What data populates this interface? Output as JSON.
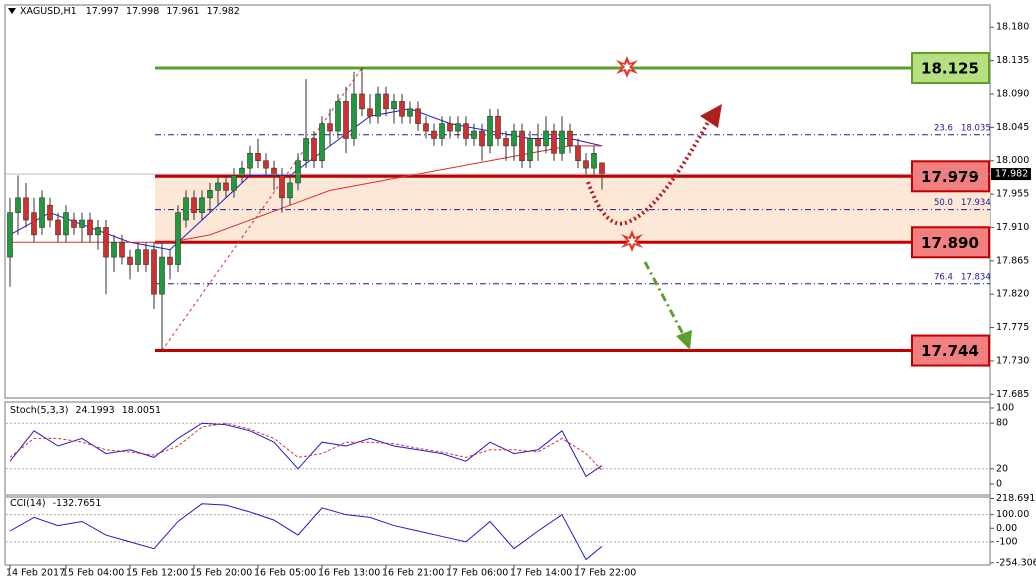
{
  "chart_data": [
    {
      "type": "candlestick",
      "symbol": "XAGUSD,H1",
      "up_color": "#1f9a3c",
      "down_color": "#d2302c",
      "xlim": [
        -0.5,
        122.5
      ],
      "xticks": [
        {
          "value": 0,
          "label": "14 Feb 2017"
        },
        {
          "value": 7,
          "label": "15 Feb 04:00"
        },
        {
          "value": 15,
          "label": "15 Feb 12:00"
        },
        {
          "value": 23,
          "label": "15 Feb 20:00"
        },
        {
          "value": 31,
          "label": "16 Feb 05:00"
        },
        {
          "value": 39,
          "label": "16 Feb 13:00"
        },
        {
          "value": 47,
          "label": "16 Feb 21:00"
        },
        {
          "value": 55,
          "label": "17 Feb 06:00"
        },
        {
          "value": 63,
          "label": "17 Feb 14:00"
        },
        {
          "value": 71,
          "label": "17 Feb 22:00"
        }
      ],
      "ylim": [
        17.68,
        18.21
      ],
      "yticks": [
        {
          "value": 18.18,
          "label": "18.180"
        },
        18.135,
        {
          "value": 18.09,
          "label": "18.090"
        },
        18.045,
        {
          "value": 18,
          "label": "18.000"
        },
        17.955,
        {
          "value": 17.91,
          "label": "17.910"
        },
        17.865,
        {
          "value": 17.82,
          "label": "17.820"
        },
        17.775,
        {
          "value": 17.73,
          "label": "17.730"
        },
        17.685
      ],
      "candles": [
        [
          17.87,
          17.95,
          17.83,
          17.93
        ],
        [
          17.93,
          17.98,
          17.9,
          17.95
        ],
        [
          17.95,
          17.97,
          17.91,
          17.92
        ],
        [
          17.93,
          17.95,
          17.89,
          17.9
        ],
        [
          17.91,
          17.96,
          17.9,
          17.95
        ],
        [
          17.94,
          17.95,
          17.91,
          17.92
        ],
        [
          17.92,
          17.93,
          17.89,
          17.9
        ],
        [
          17.9,
          17.94,
          17.89,
          17.93
        ],
        [
          17.92,
          17.93,
          17.9,
          17.91
        ],
        [
          17.91,
          17.93,
          17.89,
          17.92
        ],
        [
          17.92,
          17.93,
          17.89,
          17.9
        ],
        [
          17.9,
          17.92,
          17.88,
          17.91
        ],
        [
          17.91,
          17.92,
          17.82,
          17.87
        ],
        [
          17.87,
          17.9,
          17.85,
          17.89
        ],
        [
          17.89,
          17.9,
          17.86,
          17.87
        ],
        [
          17.87,
          17.88,
          17.84,
          17.86
        ],
        [
          17.86,
          17.89,
          17.85,
          17.88
        ],
        [
          17.88,
          17.89,
          17.85,
          17.86
        ],
        [
          17.88,
          17.89,
          17.8,
          17.82
        ],
        [
          17.82,
          17.89,
          17.744,
          17.87
        ],
        [
          17.87,
          17.88,
          17.84,
          17.86
        ],
        [
          17.86,
          17.94,
          17.85,
          17.93
        ],
        [
          17.92,
          17.96,
          17.91,
          17.95
        ],
        [
          17.95,
          17.96,
          17.92,
          17.93
        ],
        [
          17.93,
          17.96,
          17.92,
          17.95
        ],
        [
          17.95,
          17.97,
          17.93,
          17.96
        ],
        [
          17.96,
          17.98,
          17.94,
          17.97
        ],
        [
          17.97,
          17.98,
          17.95,
          17.96
        ],
        [
          17.96,
          17.99,
          17.95,
          17.98
        ],
        [
          17.98,
          18,
          17.97,
          17.99
        ],
        [
          17.99,
          18.02,
          17.98,
          18.01
        ],
        [
          18.01,
          18.03,
          17.99,
          18
        ],
        [
          18,
          18.01,
          17.98,
          17.99
        ],
        [
          17.99,
          18,
          17.96,
          17.98
        ],
        [
          17.98,
          17.99,
          17.93,
          17.95
        ],
        [
          17.95,
          17.98,
          17.94,
          17.97
        ],
        [
          17.97,
          18.01,
          17.96,
          18
        ],
        [
          18,
          18.11,
          17.99,
          18.03
        ],
        [
          18.03,
          18.04,
          17.99,
          18
        ],
        [
          18,
          18.06,
          17.99,
          18.05
        ],
        [
          18.05,
          18.07,
          18.02,
          18.04
        ],
        [
          18.04,
          18.09,
          18.03,
          18.08
        ],
        [
          18.08,
          18.1,
          18.01,
          18.03
        ],
        [
          18.03,
          18.12,
          18.02,
          18.09
        ],
        [
          18.09,
          18.125,
          18.06,
          18.07
        ],
        [
          18.07,
          18.09,
          18.05,
          18.06
        ],
        [
          18.06,
          18.1,
          18.05,
          18.09
        ],
        [
          18.09,
          18.1,
          18.06,
          18.07
        ],
        [
          18.07,
          18.09,
          18.05,
          18.08
        ],
        [
          18.08,
          18.09,
          18.05,
          18.06
        ],
        [
          18.06,
          18.08,
          18.05,
          18.07
        ],
        [
          18.07,
          18.08,
          18.04,
          18.05
        ],
        [
          18.05,
          18.06,
          18.03,
          18.04
        ],
        [
          18.04,
          18.05,
          18.02,
          18.03
        ],
        [
          18.03,
          18.06,
          18.02,
          18.05
        ],
        [
          18.05,
          18.06,
          18.03,
          18.04
        ],
        [
          18.04,
          18.06,
          18.03,
          18.05
        ],
        [
          18.05,
          18.06,
          18.02,
          18.03
        ],
        [
          18.03,
          18.05,
          18.02,
          18.04
        ],
        [
          18.04,
          18.05,
          18,
          18.02
        ],
        [
          18.02,
          18.07,
          18.01,
          18.06
        ],
        [
          18.06,
          18.07,
          18.02,
          18.03
        ],
        [
          18.03,
          18.04,
          18,
          18.02
        ],
        [
          18.02,
          18.05,
          18,
          18.04
        ],
        [
          18.04,
          18.05,
          17.99,
          18
        ],
        [
          18,
          18.04,
          17.99,
          18.03
        ],
        [
          18.03,
          18.05,
          18,
          18.02
        ],
        [
          18.02,
          18.06,
          18.01,
          18.04
        ],
        [
          18.04,
          18.05,
          18,
          18.01
        ],
        [
          18.01,
          18.06,
          18,
          18.04
        ],
        [
          18.04,
          18.05,
          18.01,
          18.02
        ],
        [
          18.02,
          18.03,
          17.99,
          18
        ],
        [
          18,
          18.01,
          17.98,
          17.99
        ],
        [
          17.99,
          18.02,
          17.98,
          18.01
        ],
        [
          17.997,
          17.998,
          17.961,
          17.982
        ]
      ],
      "series": [
        {
          "color": "#1c1cc8",
          "x": [
            0,
            5,
            10,
            15,
            20,
            25,
            30,
            35,
            40,
            45,
            50,
            55,
            60,
            65,
            70,
            74
          ],
          "values": [
            17.9,
            17.93,
            17.91,
            17.89,
            17.88,
            17.93,
            17.98,
            17.98,
            18.02,
            18.06,
            18.07,
            18.05,
            18.04,
            18.03,
            18.03,
            18.02
          ]
        },
        {
          "color": "#d83030",
          "x": [
            0,
            10,
            20,
            25,
            30,
            35,
            40,
            45,
            50,
            55,
            60,
            65,
            70,
            74
          ],
          "values": [
            17.89,
            17.89,
            17.89,
            17.9,
            17.92,
            17.94,
            17.96,
            17.97,
            17.98,
            17.99,
            18,
            18.01,
            18.02,
            18.02
          ]
        }
      ],
      "levels": {
        "values": [
          18.125,
          17.979,
          17.89,
          17.744
        ],
        "value_labels": [
          "18.125",
          "17.979",
          "17.890",
          "17.744"
        ],
        "colors": [
          "#5c9e2e",
          "#c00000",
          "#c00000",
          "#c00000"
        ],
        "box_colors": [
          "#b6e07f",
          "#f27f7f",
          "#f27f7f",
          "#f27f7f"
        ]
      },
      "zone_color": "#fde8d8",
      "fibo": {
        "ratios": [
          23.6,
          50,
          76.4
        ],
        "ratio_labels": [
          "23.6",
          "50.0",
          "76.4"
        ],
        "prices": [
          18.035,
          17.934,
          17.834
        ],
        "color": "#1a1a8c"
      }
    },
    {
      "type": "line",
      "title": "Stoch(5,3,3)",
      "ylim": [
        -14.5,
        107.9
      ],
      "yticks": [
        100,
        80,
        20,
        0
      ],
      "levels": [
        80,
        20
      ],
      "x": [
        0,
        3,
        6,
        9,
        12,
        15,
        18,
        21,
        24,
        27,
        30,
        33,
        36,
        39,
        42,
        45,
        48,
        51,
        54,
        57,
        60,
        63,
        66,
        69,
        72,
        74
      ],
      "series": [
        {
          "color": "#1c1cc8",
          "dash": false,
          "values": [
            30,
            70,
            50,
            60,
            40,
            45,
            35,
            60,
            80,
            78,
            70,
            55,
            20,
            55,
            50,
            60,
            50,
            45,
            40,
            30,
            55,
            40,
            45,
            70,
            10,
            24.1993
          ]
        },
        {
          "color": "#e03030",
          "dash": true,
          "values": [
            35,
            60,
            60,
            55,
            45,
            42,
            38,
            50,
            75,
            80,
            72,
            60,
            35,
            40,
            55,
            55,
            53,
            47,
            42,
            35,
            45,
            45,
            42,
            60,
            40,
            18.0051
          ]
        }
      ]
    },
    {
      "type": "line",
      "title": "CCI(14)",
      "ylim": [
        -270,
        230
      ],
      "yticks": [
        218.6915,
        {
          "value": 100,
          "label": "100.00"
        },
        {
          "value": 0,
          "label": "0.00"
        },
        -100,
        -254.306
      ],
      "levels": [
        100,
        -100
      ],
      "x": [
        0,
        3,
        6,
        9,
        12,
        15,
        18,
        21,
        24,
        27,
        30,
        33,
        36,
        39,
        42,
        45,
        48,
        51,
        54,
        57,
        60,
        63,
        66,
        69,
        72,
        74
      ],
      "series": [
        {
          "color": "#1c1cc8",
          "dash": false,
          "values": [
            -20,
            80,
            20,
            50,
            -50,
            -100,
            -150,
            50,
            180,
            170,
            120,
            60,
            -50,
            150,
            100,
            80,
            20,
            -20,
            -60,
            -100,
            50,
            -150,
            -20,
            100,
            -230,
            -132.7651
          ]
        }
      ]
    }
  ]
}
